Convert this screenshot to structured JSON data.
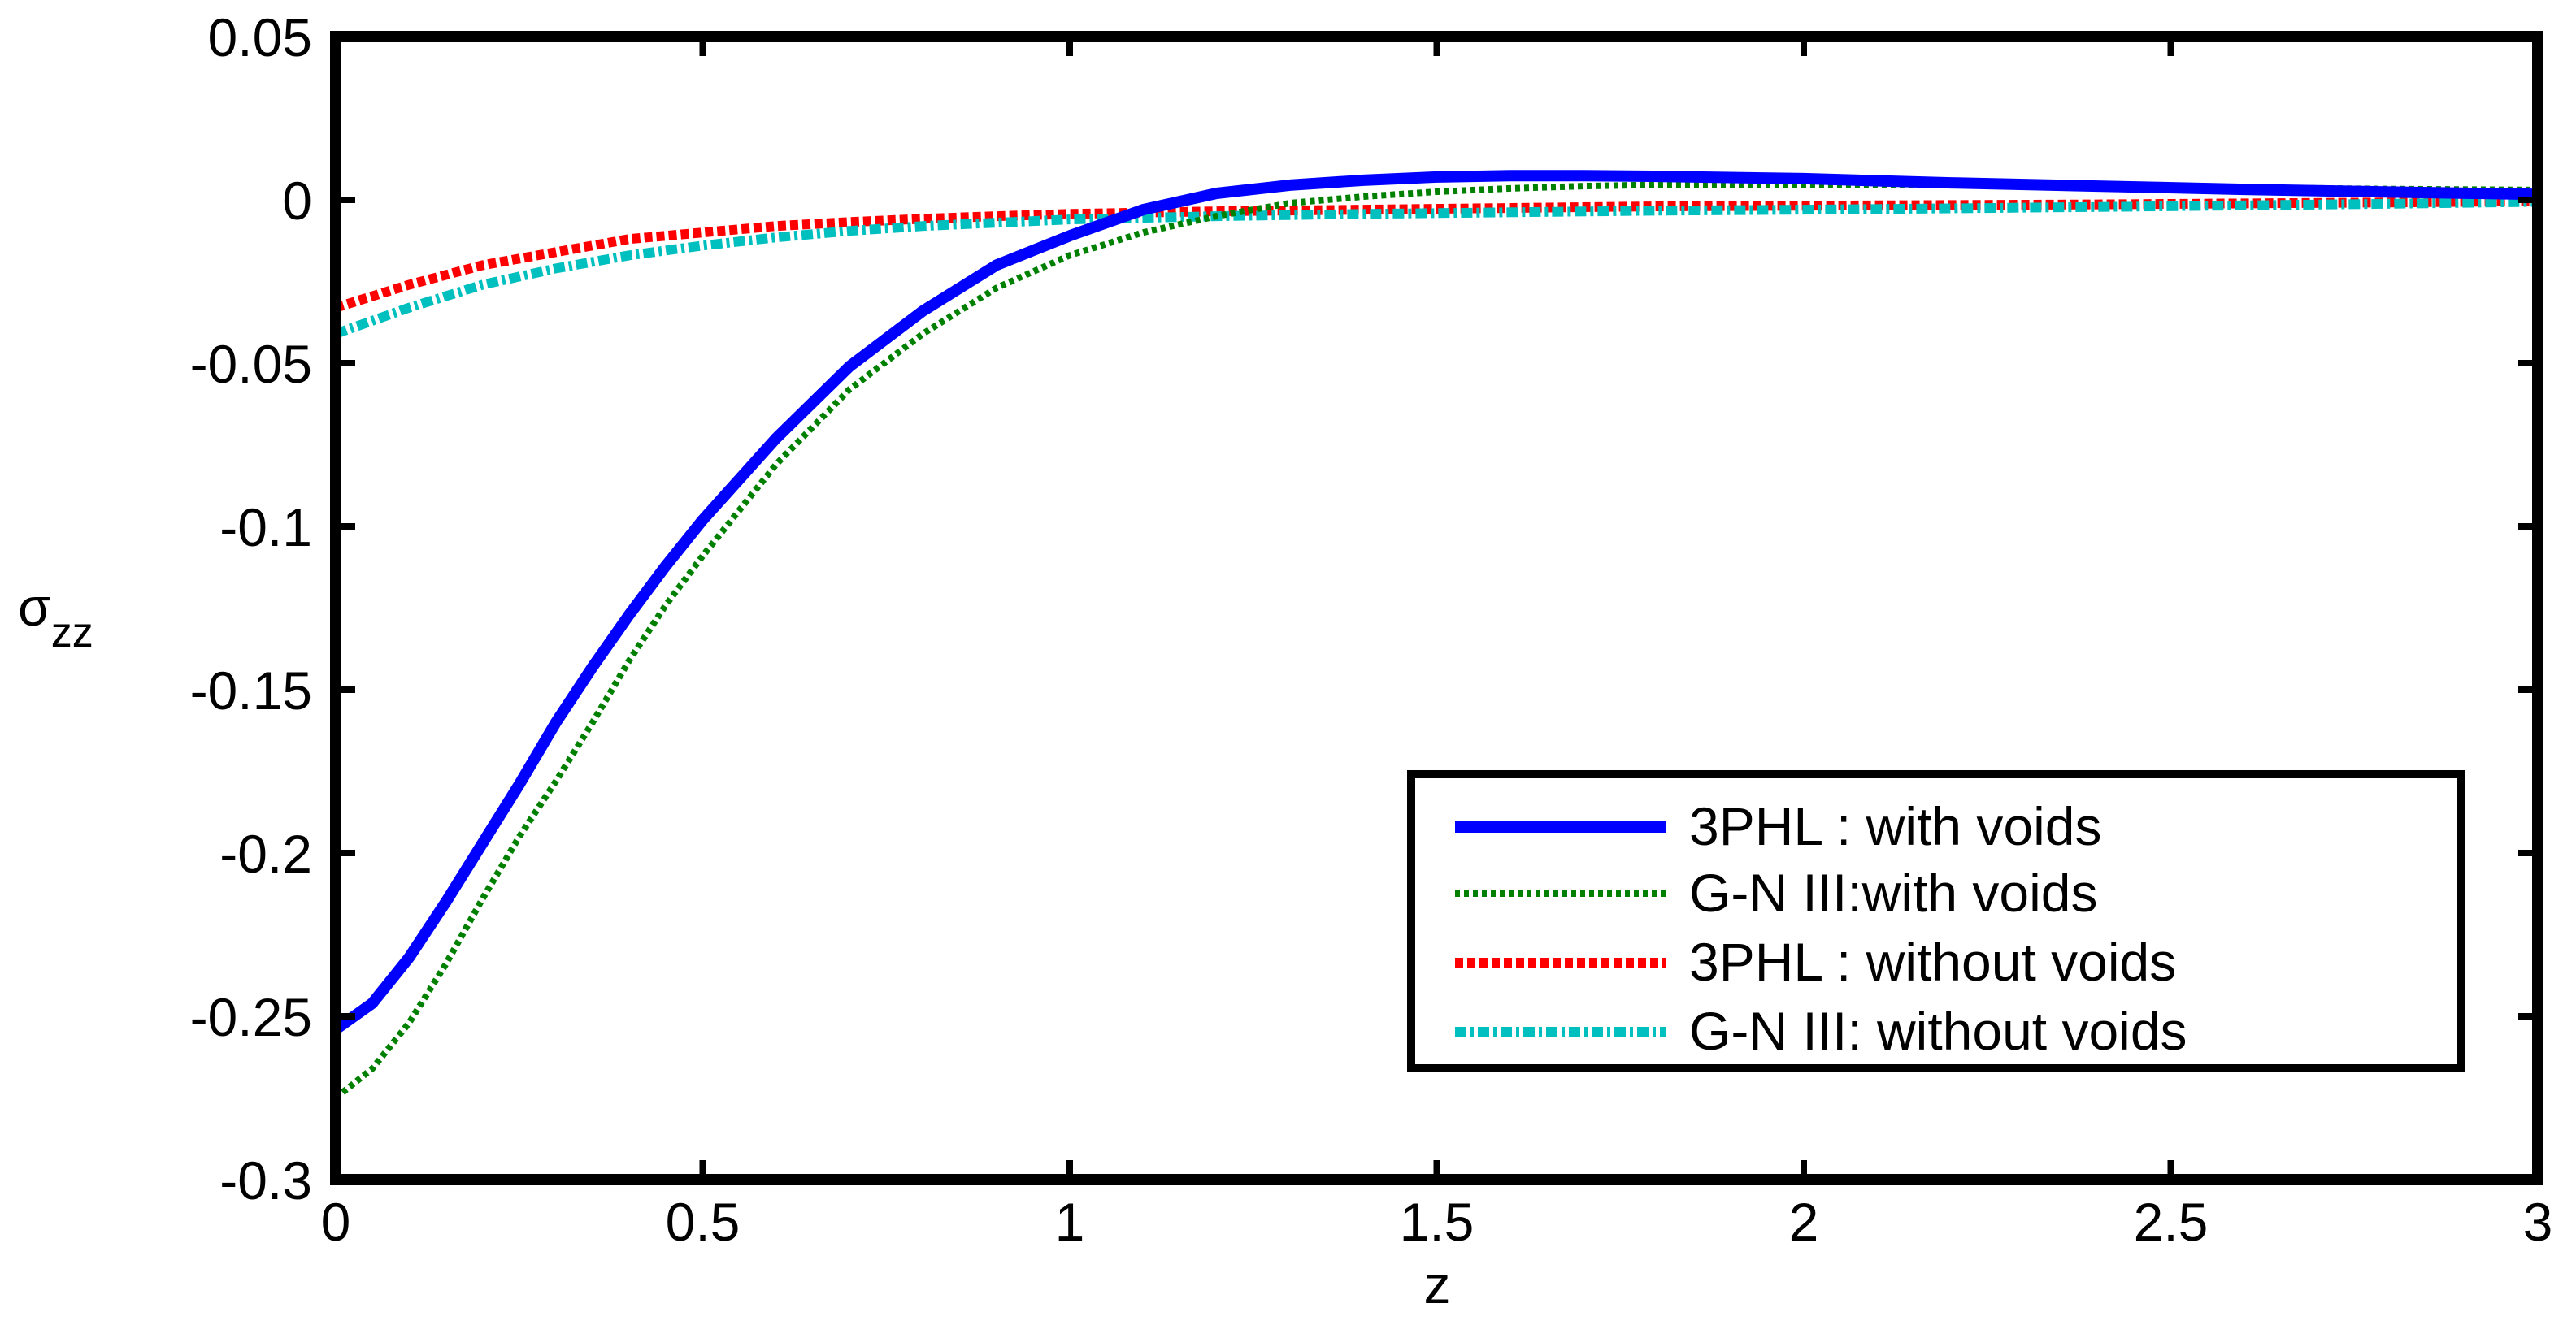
{
  "chart_data": {
    "type": "line",
    "title": "",
    "xlabel": "z",
    "ylabel": "σzz",
    "ylabel_main": "σ",
    "ylabel_sub": "zz",
    "xlim": [
      0,
      3
    ],
    "ylim": [
      -0.3,
      0.05
    ],
    "grid": false,
    "legend_position": "lower right (inside)",
    "x_ticks": [
      0,
      0.5,
      1,
      1.5,
      2,
      2.5,
      3
    ],
    "x_tick_labels": [
      "0",
      "0.5",
      "1",
      "1.5",
      "2",
      "2.5",
      "3"
    ],
    "y_ticks": [
      0.05,
      0,
      -0.05,
      -0.1,
      -0.15,
      -0.2,
      -0.25,
      -0.3
    ],
    "y_tick_labels": [
      "0.05",
      "0",
      "-0.05",
      "-0.1",
      "-0.15",
      "-0.2",
      "-0.25",
      "-0.3"
    ],
    "series": [
      {
        "name": "3PHL : with voids",
        "color": "#0000ff",
        "style": "solid",
        "width": 14,
        "x": [
          0,
          0.05,
          0.1,
          0.15,
          0.2,
          0.25,
          0.3,
          0.35,
          0.4,
          0.45,
          0.5,
          0.6,
          0.7,
          0.8,
          0.9,
          1.0,
          1.1,
          1.2,
          1.3,
          1.4,
          1.5,
          1.6,
          1.7,
          1.8,
          2.0,
          2.2,
          2.4,
          2.6,
          2.8,
          3.0
        ],
        "y": [
          -0.254,
          -0.246,
          -0.232,
          -0.215,
          -0.197,
          -0.179,
          -0.16,
          -0.143,
          -0.127,
          -0.112,
          -0.098,
          -0.073,
          -0.051,
          -0.034,
          -0.02,
          -0.011,
          -0.003,
          0.002,
          0.0045,
          0.006,
          0.007,
          0.0074,
          0.0074,
          0.0072,
          0.0065,
          0.0052,
          0.0042,
          0.0032,
          0.0024,
          0.0017
        ]
      },
      {
        "name": "G-N III:with voids",
        "color": "#008000",
        "style": "dotted",
        "width": 8,
        "x": [
          0,
          0.05,
          0.1,
          0.15,
          0.2,
          0.25,
          0.3,
          0.35,
          0.4,
          0.45,
          0.5,
          0.6,
          0.7,
          0.8,
          0.9,
          1.0,
          1.1,
          1.2,
          1.3,
          1.4,
          1.5,
          1.6,
          1.7,
          1.8,
          2.0,
          2.2,
          2.4,
          2.6,
          2.8,
          3.0
        ],
        "y": [
          -0.275,
          -0.266,
          -0.252,
          -0.234,
          -0.214,
          -0.195,
          -0.178,
          -0.16,
          -0.141,
          -0.124,
          -0.109,
          -0.081,
          -0.058,
          -0.041,
          -0.027,
          -0.017,
          -0.01,
          -0.005,
          -0.001,
          0.001,
          0.0025,
          0.0035,
          0.0042,
          0.0046,
          0.0047,
          0.0045,
          0.004,
          0.0037,
          0.0033,
          0.003
        ]
      },
      {
        "name": "3PHL : without voids",
        "color": "#ff0000",
        "style": "dotted",
        "width": 12,
        "x": [
          0,
          0.1,
          0.2,
          0.3,
          0.4,
          0.5,
          0.6,
          0.7,
          0.8,
          0.9,
          1.0,
          1.2,
          1.4,
          1.6,
          1.8,
          2.0,
          2.4,
          2.8,
          3.0
        ],
        "y": [
          -0.033,
          -0.026,
          -0.02,
          -0.016,
          -0.012,
          -0.01,
          -0.008,
          -0.0068,
          -0.0058,
          -0.005,
          -0.0043,
          -0.0035,
          -0.003,
          -0.0025,
          -0.002,
          -0.0018,
          -0.0014,
          -0.0008,
          -0.0004
        ]
      },
      {
        "name": "G-N III: without voids",
        "color": "#00bfbf",
        "style": "dash-dot",
        "width": 12,
        "x": [
          0,
          0.1,
          0.2,
          0.3,
          0.4,
          0.5,
          0.6,
          0.7,
          0.8,
          0.9,
          1.0,
          1.2,
          1.4,
          1.6,
          1.8,
          2.0,
          2.4,
          2.8,
          3.0
        ],
        "y": [
          -0.041,
          -0.033,
          -0.026,
          -0.021,
          -0.017,
          -0.014,
          -0.0115,
          -0.0095,
          -0.008,
          -0.007,
          -0.006,
          -0.005,
          -0.0043,
          -0.0038,
          -0.0033,
          -0.003,
          -0.0022,
          -0.0012,
          -0.0006
        ]
      }
    ]
  }
}
